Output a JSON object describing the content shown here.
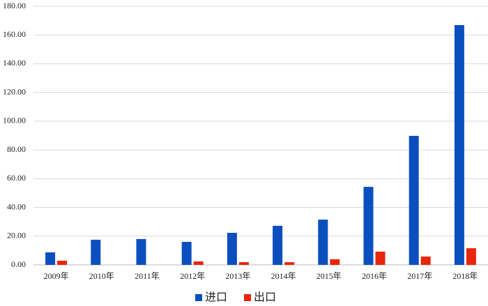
{
  "chart_data": {
    "type": "bar",
    "categories": [
      "2009年",
      "2010年",
      "2011年",
      "2012年",
      "2013年",
      "2014年",
      "2015年",
      "2016年",
      "2017年",
      "2018年"
    ],
    "series": [
      {
        "name": "进口",
        "color": "#0b4fbf",
        "values": [
          8.7,
          17.5,
          18,
          16,
          22.3,
          27.2,
          31.5,
          54.3,
          89.8,
          166.9
        ]
      },
      {
        "name": "出口",
        "color": "#e8260c",
        "values": [
          2.9,
          0,
          0,
          2.4,
          1.9,
          1.9,
          3.9,
          9.2,
          5.8,
          11.6
        ]
      }
    ],
    "ylim": [
      0,
      180
    ],
    "yticks": [
      {
        "value": 0,
        "label": "0.00"
      },
      {
        "value": 20,
        "label": "20.00"
      },
      {
        "value": 40,
        "label": "40.00"
      },
      {
        "value": 60,
        "label": "60.00"
      },
      {
        "value": 80,
        "label": "80.00"
      },
      {
        "value": 100,
        "label": "100.00"
      },
      {
        "value": 120,
        "label": "120.00"
      },
      {
        "value": 140,
        "label": "140.00"
      },
      {
        "value": 160,
        "label": "160.00"
      },
      {
        "value": 180,
        "label": "180.00"
      }
    ],
    "grid": true,
    "legend": "bottom"
  }
}
